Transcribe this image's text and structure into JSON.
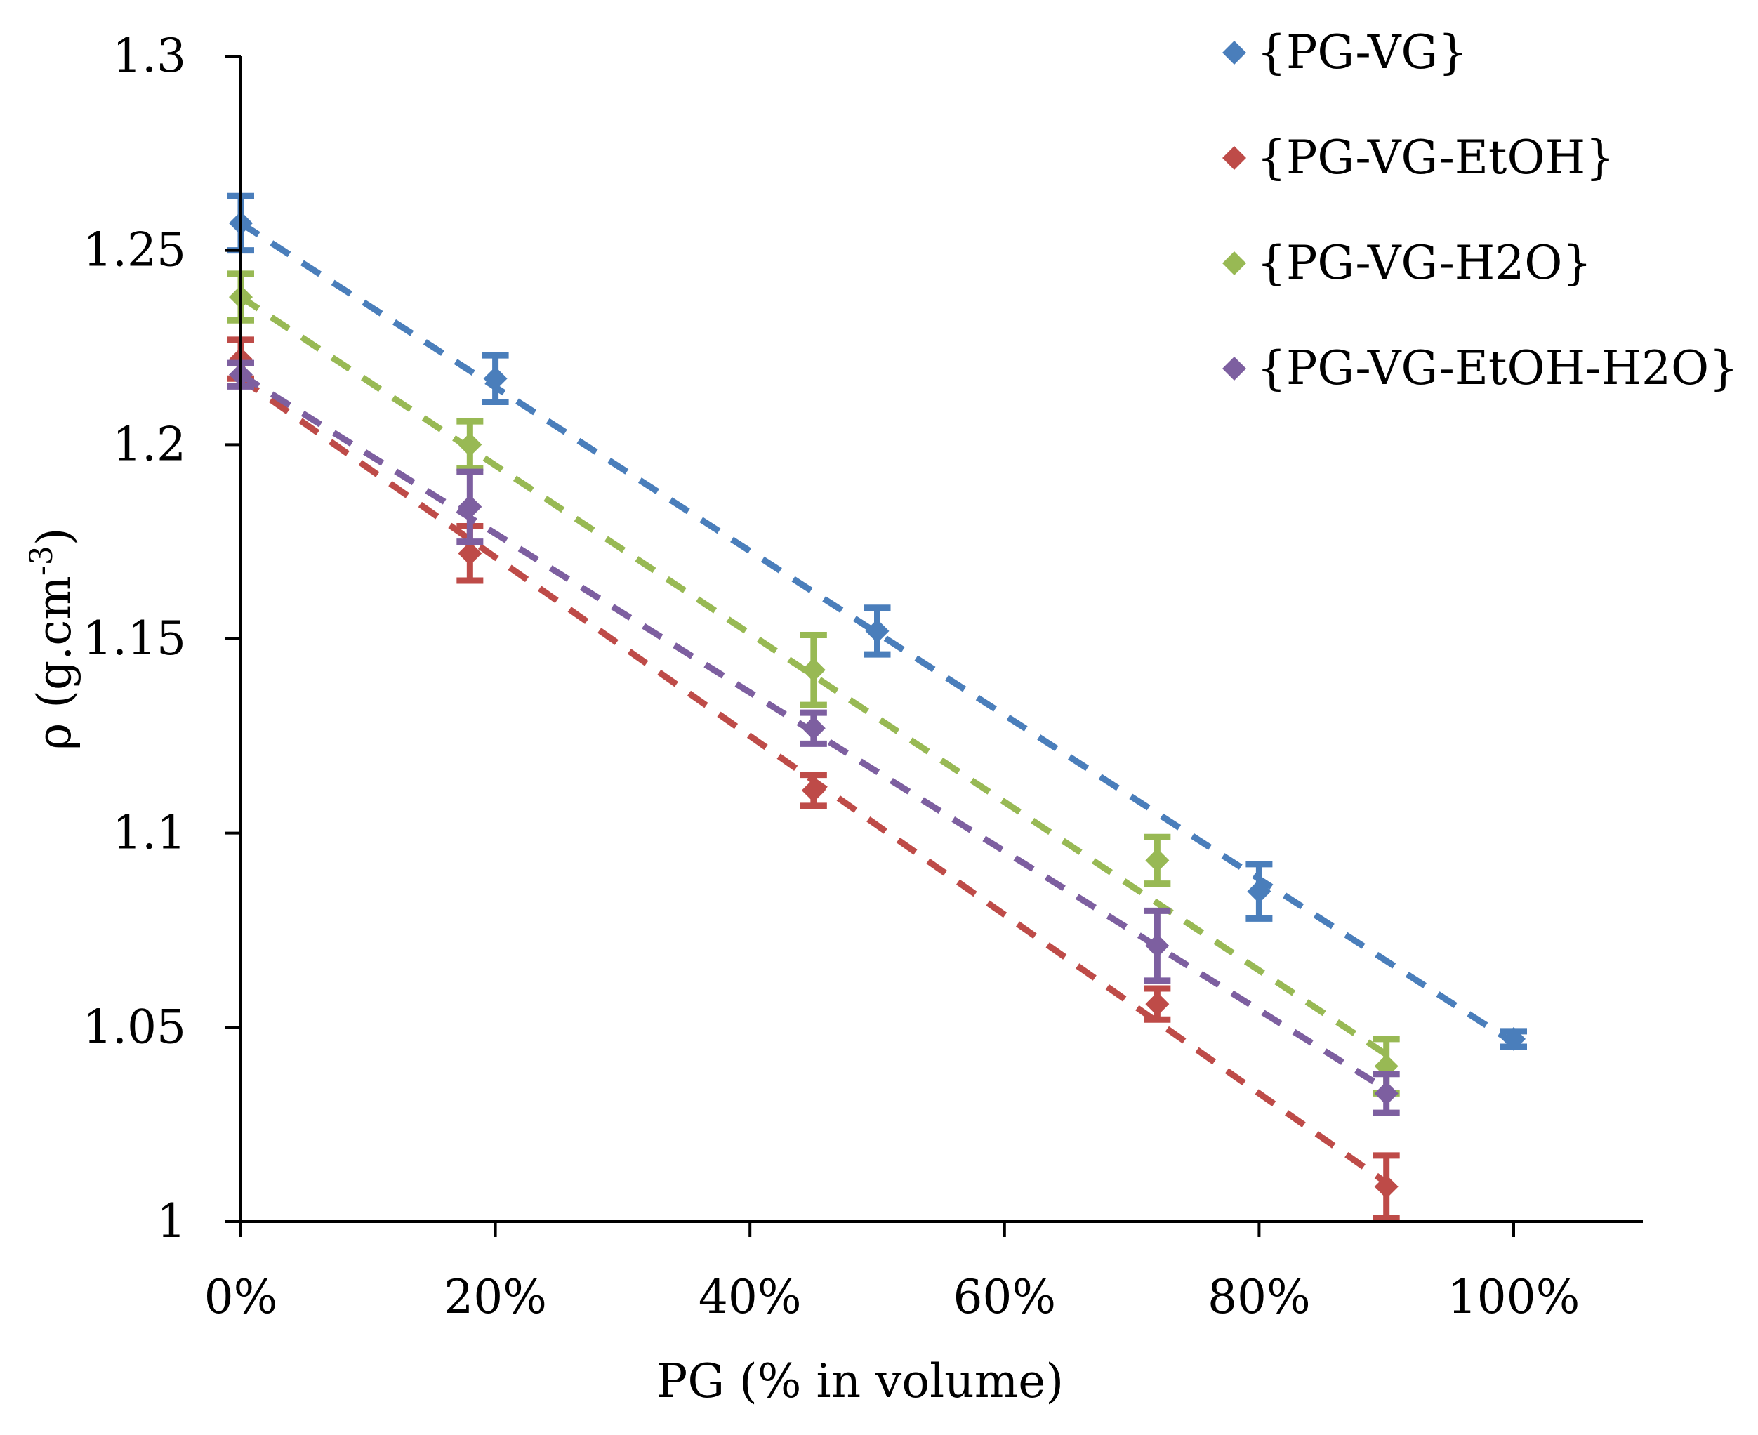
{
  "chart_data": {
    "type": "scatter",
    "title": "",
    "xlabel": "PG (% in volume)",
    "ylabel_main": "ρ (g.cm",
    "ylabel_sup": "-3",
    "ylabel_close": ")",
    "xlim": [
      0,
      1.1
    ],
    "ylim": [
      1.0,
      1.3
    ],
    "x_ticks": [
      0,
      0.2,
      0.4,
      0.6,
      0.8,
      1.0
    ],
    "x_tick_labels": [
      "0%",
      "20%",
      "40%",
      "60%",
      "80%",
      "100%"
    ],
    "y_ticks": [
      1.0,
      1.05,
      1.1,
      1.15,
      1.2,
      1.25,
      1.3
    ],
    "y_tick_labels": [
      "1",
      "1.05",
      "1.1",
      "1.15",
      "1.2",
      "1.25",
      "1.3"
    ],
    "legend_position": "top-right",
    "trendlines": "dashed linear fit per series",
    "series": [
      {
        "name": "{PG-VG}",
        "color": "#4a7ebb",
        "x": [
          0,
          0.2,
          0.5,
          0.8,
          1.0
        ],
        "y": [
          1.257,
          1.217,
          1.152,
          1.085,
          1.047
        ],
        "err": [
          0.007,
          0.006,
          0.006,
          0.007,
          0.002
        ],
        "fit": [
          [
            0,
            1.257
          ],
          [
            1.0,
            1.046
          ]
        ]
      },
      {
        "name": "{PG-VG-EtOH}",
        "color": "#be4b48",
        "x": [
          0,
          0.18,
          0.45,
          0.72,
          0.9
        ],
        "y": [
          1.222,
          1.172,
          1.111,
          1.056,
          1.009
        ],
        "err": [
          0.005,
          0.007,
          0.004,
          0.004,
          0.008
        ],
        "fit": [
          [
            0,
            1.217
          ],
          [
            0.9,
            1.01
          ]
        ]
      },
      {
        "name": "{PG-VG-H2O}",
        "color": "#98b954",
        "x": [
          0,
          0.18,
          0.45,
          0.72,
          0.9
        ],
        "y": [
          1.238,
          1.2,
          1.142,
          1.093,
          1.04
        ],
        "err": [
          0.006,
          0.006,
          0.009,
          0.006,
          0.007
        ],
        "fit": [
          [
            0,
            1.238
          ],
          [
            0.9,
            1.043
          ]
        ]
      },
      {
        "name": "{PG-VG-EtOH-H2O}",
        "color": "#7d5fa0",
        "x": [
          0,
          0.18,
          0.45,
          0.72,
          0.9
        ],
        "y": [
          1.218,
          1.184,
          1.127,
          1.071,
          1.033
        ],
        "err": [
          0.003,
          0.009,
          0.004,
          0.009,
          0.005
        ],
        "fit": [
          [
            0,
            1.218
          ],
          [
            0.9,
            1.034
          ]
        ]
      }
    ]
  }
}
